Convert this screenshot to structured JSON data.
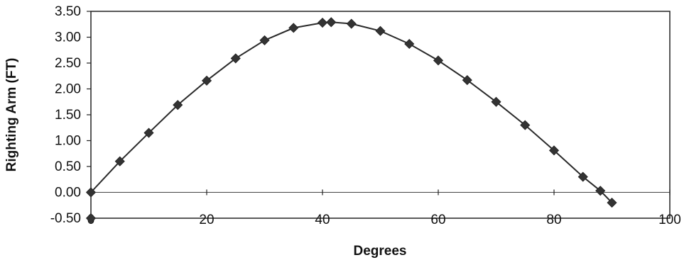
{
  "chart_data": {
    "type": "scatter",
    "title": "",
    "xlabel": "Degrees",
    "ylabel": "Righting Arm (FT)",
    "xlim": [
      0,
      100
    ],
    "ylim": [
      -0.5,
      3.5
    ],
    "x_ticks": [
      "0",
      "20",
      "40",
      "60",
      "80",
      "100"
    ],
    "y_ticks": [
      "3.50",
      "3.00",
      "2.50",
      "2.00",
      "1.50",
      "1.00",
      "0.50",
      "0.00",
      "-0.50"
    ],
    "grid": false,
    "legend": "none",
    "line_color": "#2a2a2a",
    "marker_color": "#333333",
    "series": [
      {
        "x": [
          0,
          5,
          10,
          15,
          20,
          25,
          30,
          35,
          40,
          41.5,
          45,
          50,
          55,
          60,
          65,
          70,
          75,
          80,
          85,
          88,
          90
        ],
        "y": [
          0.0,
          0.6,
          1.15,
          1.69,
          2.16,
          2.59,
          2.94,
          3.18,
          3.28,
          3.29,
          3.26,
          3.12,
          2.87,
          2.55,
          2.17,
          1.75,
          1.3,
          0.81,
          0.3,
          0.03,
          -0.2
        ]
      }
    ]
  }
}
